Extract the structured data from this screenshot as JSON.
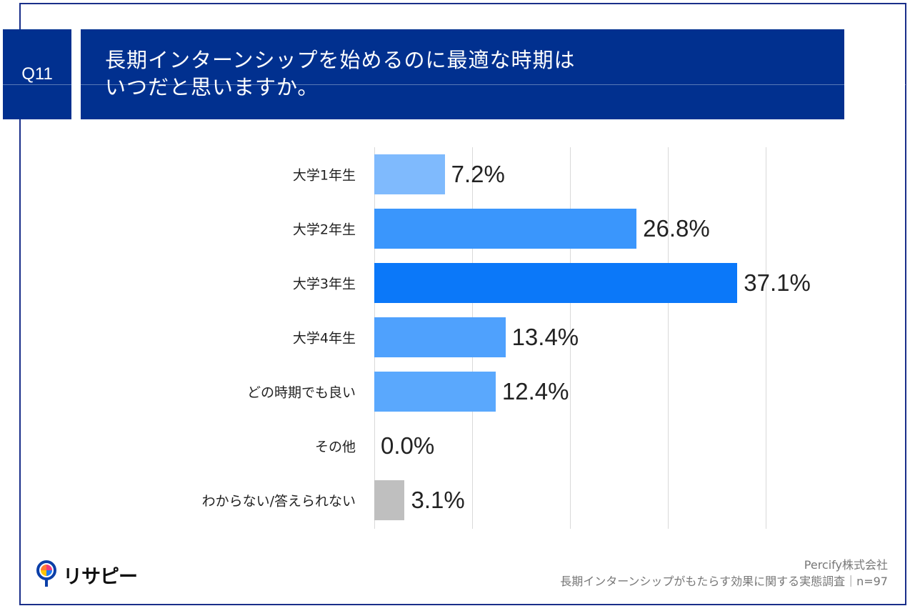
{
  "question_id": "Q11",
  "title": "長期インターンシップを始めるのに最適な時期は\nいつだと思いますか。",
  "chart_data": {
    "type": "bar",
    "orientation": "horizontal",
    "categories": [
      "大学1年生",
      "大学2年生",
      "大学3年生",
      "大学4年生",
      "どの時期でも良い",
      "その他",
      "わからない/答えられない"
    ],
    "values": [
      7.2,
      26.8,
      37.1,
      13.4,
      12.4,
      0.0,
      3.1
    ],
    "labels": [
      "7.2%",
      "26.8%",
      "37.1%",
      "13.4%",
      "12.4%",
      "0.0%",
      "3.1%"
    ],
    "colors": [
      "#7fbafd",
      "#3a96fc",
      "#0b78f9",
      "#4fa1fd",
      "#5aa8fd",
      "#5aa8fd",
      "#bfbfbf"
    ],
    "xlim": [
      0,
      40
    ],
    "grid": true,
    "unit": "%"
  },
  "logo": {
    "name": "リサピー",
    "icon": "lightbulb-logo-icon"
  },
  "credit": {
    "company": "Percify株式会社",
    "survey": "長期インターンシップがもたらす効果に関する実態調査｜n=97"
  }
}
